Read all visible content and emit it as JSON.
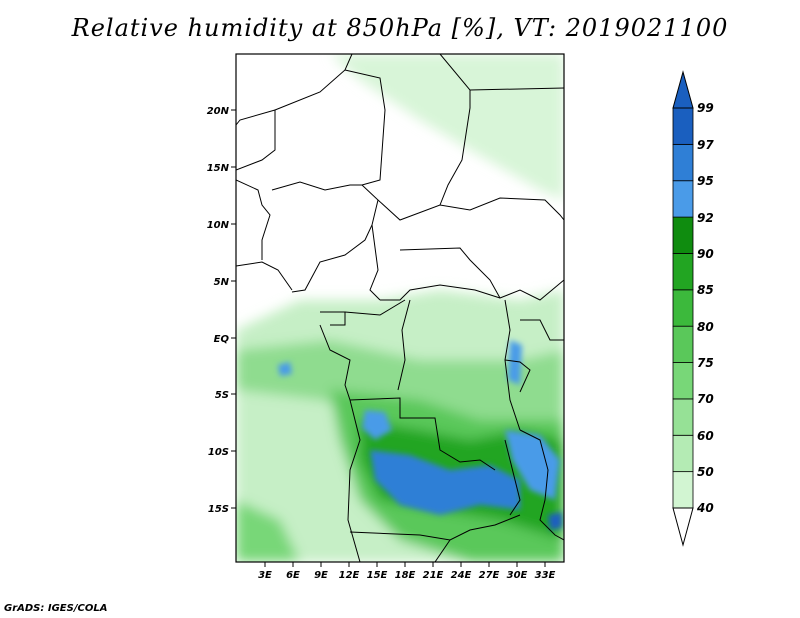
{
  "title": "Relative humidity at 850hPa [%], VT: 2019021100",
  "credit": "GrADS: IGES/COLA",
  "axes": {
    "lat_ticks": [
      "20N",
      "15N",
      "10N",
      "5N",
      "EQ",
      "5S",
      "10S",
      "15S"
    ],
    "lon_ticks": [
      "3E",
      "6E",
      "9E",
      "12E",
      "15E",
      "18E",
      "21E",
      "24E",
      "27E",
      "30E",
      "33E"
    ]
  },
  "colorbar": {
    "levels": [
      "40",
      "50",
      "60",
      "70",
      "75",
      "80",
      "85",
      "90",
      "92",
      "95",
      "97",
      "99"
    ],
    "colors": [
      "#f0fff0",
      "#d2f5d2",
      "#b4ebb4",
      "#96e196",
      "#78d778",
      "#5ac85a",
      "#3cb93c",
      "#22a522",
      "#0f8c0f",
      "#4a9be8",
      "#2f7fd6",
      "#1a5fbf"
    ]
  }
}
